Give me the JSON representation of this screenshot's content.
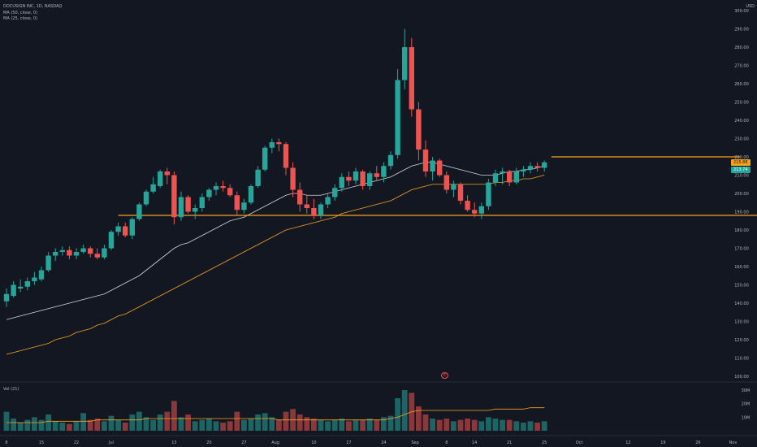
{
  "header": {
    "symbol_line": "DOCUSIGN INC, 1D, NASDAQ",
    "ma_line_1": "MA (50, close, 0)",
    "ma_line_2": "MA (25, close, 0)",
    "volume_label": "Vol (21)",
    "currency": "USD"
  },
  "price_badges": {
    "last_price": "216.88",
    "ma_value": "213.74"
  },
  "earnings_marker": "E",
  "colors": {
    "background": "#131722",
    "up": "#26a69a",
    "down": "#ef5350",
    "ma50": "#d1d4dc",
    "ma25": "#f7a21b",
    "level": "#f7a21b"
  },
  "chart_data": {
    "type": "candlestick",
    "price_axis": {
      "min": 100,
      "max": 300,
      "ticks": [
        "100.00",
        "110.00",
        "120.00",
        "130.00",
        "140.00",
        "150.00",
        "160.00",
        "170.00",
        "180.00",
        "190.00",
        "200.00",
        "210.00",
        "220.00",
        "230.00",
        "240.00",
        "250.00",
        "260.00",
        "270.00",
        "280.00",
        "290.00",
        "300.00"
      ]
    },
    "volume_axis": {
      "max": 30,
      "ticks": [
        "10M",
        "20M",
        "30M"
      ]
    },
    "time_axis": {
      "ticks": [
        {
          "label": "8",
          "i": 0
        },
        {
          "label": "15",
          "i": 5
        },
        {
          "label": "22",
          "i": 10
        },
        {
          "label": "Jul",
          "i": 15
        },
        {
          "label": "13",
          "i": 24
        },
        {
          "label": "20",
          "i": 29
        },
        {
          "label": "27",
          "i": 34
        },
        {
          "label": "Aug",
          "i": 38.5
        },
        {
          "label": "10",
          "i": 44
        },
        {
          "label": "17",
          "i": 49
        },
        {
          "label": "24",
          "i": 54
        },
        {
          "label": "Sep",
          "i": 58.5
        },
        {
          "label": "8",
          "i": 63
        },
        {
          "label": "14",
          "i": 67
        },
        {
          "label": "21",
          "i": 72
        },
        {
          "label": "25",
          "i": 77
        },
        {
          "label": "Oct",
          "i": 82
        },
        {
          "label": "12",
          "i": 89
        },
        {
          "label": "19",
          "i": 94
        },
        {
          "label": "26",
          "i": 99
        },
        {
          "label": "Nov",
          "i": 104
        }
      ]
    },
    "candles": [
      [
        141,
        148,
        138,
        145,
        14
      ],
      [
        144,
        152,
        143,
        150,
        9
      ],
      [
        148,
        153,
        146,
        149,
        6
      ],
      [
        149,
        154,
        147,
        152,
        8
      ],
      [
        152,
        157,
        150,
        154,
        10
      ],
      [
        153,
        160,
        152,
        158,
        8
      ],
      [
        158,
        168,
        157,
        166,
        12
      ],
      [
        166,
        170,
        163,
        168,
        7
      ],
      [
        168,
        171,
        166,
        169,
        6
      ],
      [
        169,
        171,
        164,
        166,
        5
      ],
      [
        166,
        170,
        164,
        168,
        7
      ],
      [
        168,
        172,
        167,
        170,
        13
      ],
      [
        170,
        171,
        165,
        167,
        8
      ],
      [
        167,
        170,
        164,
        165,
        9
      ],
      [
        165,
        172,
        164,
        170,
        7
      ],
      [
        170,
        180,
        169,
        179,
        11
      ],
      [
        179,
        184,
        177,
        182,
        8
      ],
      [
        182,
        184,
        176,
        177,
        6
      ],
      [
        177,
        187,
        175,
        186,
        12
      ],
      [
        186,
        195,
        185,
        194,
        14
      ],
      [
        194,
        202,
        193,
        201,
        10
      ],
      [
        201,
        209,
        200,
        205,
        8
      ],
      [
        204,
        213,
        203,
        212,
        12
      ],
      [
        212,
        214,
        205,
        210,
        14
      ],
      [
        210,
        212,
        183,
        187,
        22
      ],
      [
        187,
        201,
        185,
        198,
        10
      ],
      [
        198,
        199,
        189,
        190,
        12
      ],
      [
        190,
        194,
        186,
        192,
        7
      ],
      [
        192,
        200,
        190,
        198,
        8
      ],
      [
        198,
        203,
        196,
        202,
        9
      ],
      [
        202,
        206,
        199,
        204,
        7
      ],
      [
        204,
        207,
        201,
        203,
        6
      ],
      [
        203,
        205,
        198,
        199,
        7
      ],
      [
        199,
        201,
        188,
        191,
        14
      ],
      [
        191,
        197,
        189,
        195,
        8
      ],
      [
        195,
        205,
        194,
        204,
        9
      ],
      [
        204,
        215,
        203,
        213,
        12
      ],
      [
        213,
        226,
        212,
        225,
        13
      ],
      [
        225,
        230,
        222,
        228,
        10
      ],
      [
        228,
        230,
        223,
        227,
        8
      ],
      [
        227,
        228,
        210,
        214,
        14
      ],
      [
        214,
        217,
        198,
        202,
        16
      ],
      [
        202,
        206,
        190,
        194,
        12
      ],
      [
        194,
        199,
        189,
        192,
        10
      ],
      [
        192,
        197,
        186,
        188,
        9
      ],
      [
        188,
        195,
        186,
        194,
        8
      ],
      [
        194,
        200,
        192,
        198,
        7
      ],
      [
        198,
        205,
        196,
        203,
        8
      ],
      [
        203,
        211,
        201,
        209,
        9
      ],
      [
        209,
        212,
        204,
        207,
        7
      ],
      [
        207,
        214,
        205,
        212,
        8
      ],
      [
        212,
        213,
        202,
        204,
        8
      ],
      [
        204,
        212,
        202,
        211,
        9
      ],
      [
        211,
        215,
        207,
        209,
        8
      ],
      [
        209,
        217,
        206,
        215,
        10
      ],
      [
        215,
        223,
        213,
        221,
        11
      ],
      [
        221,
        268,
        219,
        262,
        24
      ],
      [
        262,
        290,
        257,
        280,
        30
      ],
      [
        280,
        285,
        242,
        246,
        28
      ],
      [
        246,
        250,
        218,
        224,
        18
      ],
      [
        224,
        229,
        209,
        212,
        12
      ],
      [
        212,
        220,
        207,
        218,
        9
      ],
      [
        218,
        219,
        209,
        210,
        8
      ],
      [
        210,
        212,
        200,
        202,
        9
      ],
      [
        202,
        207,
        198,
        205,
        7
      ],
      [
        205,
        206,
        194,
        196,
        8
      ],
      [
        196,
        199,
        190,
        191,
        9
      ],
      [
        191,
        195,
        187,
        189,
        8
      ],
      [
        189,
        195,
        186,
        193,
        7
      ],
      [
        193,
        208,
        191,
        206,
        10
      ],
      [
        206,
        213,
        204,
        211,
        9
      ],
      [
        211,
        214,
        205,
        212,
        8
      ],
      [
        212,
        213,
        204,
        206,
        8
      ],
      [
        206,
        214,
        205,
        212,
        7
      ],
      [
        212,
        215,
        209,
        213,
        6
      ],
      [
        213,
        217,
        211,
        215,
        7
      ],
      [
        215,
        217,
        212,
        214,
        6
      ],
      [
        214,
        218,
        212,
        217,
        7
      ]
    ],
    "ma50": [
      131,
      132,
      133,
      134,
      135,
      136,
      137,
      138,
      139,
      140,
      141,
      142,
      143,
      144,
      145,
      147,
      149,
      151,
      153,
      155,
      158,
      161,
      164,
      167,
      170,
      172,
      173,
      175,
      177,
      179,
      181,
      183,
      185,
      186,
      187,
      189,
      191,
      193,
      195,
      197,
      199,
      200,
      200,
      199,
      199,
      199,
      200,
      201,
      202,
      203,
      204,
      205,
      206,
      207,
      208,
      209,
      211,
      213,
      215,
      216,
      217,
      217,
      216,
      215,
      214,
      213,
      212,
      211,
      210,
      210,
      210,
      211,
      212,
      212,
      213,
      213,
      214,
      215
    ],
    "ma25": [
      112,
      113,
      114,
      115,
      116,
      117,
      118,
      120,
      121,
      122,
      124,
      125,
      126,
      128,
      129,
      131,
      133,
      134,
      136,
      138,
      140,
      142,
      144,
      146,
      148,
      150,
      152,
      154,
      156,
      158,
      160,
      162,
      164,
      166,
      168,
      170,
      172,
      174,
      176,
      178,
      180,
      181,
      182,
      183,
      184,
      185,
      186,
      187,
      189,
      190,
      191,
      192,
      193,
      194,
      195,
      196,
      198,
      200,
      202,
      203,
      204,
      205,
      205,
      205,
      205,
      205,
      205,
      205,
      205,
      205,
      206,
      206,
      207,
      207,
      208,
      208,
      209,
      210
    ],
    "volume_ma": [
      6,
      6,
      6,
      6,
      6,
      6,
      7,
      7,
      7,
      7,
      7,
      7,
      7,
      8,
      8,
      8,
      8,
      8,
      8,
      8,
      9,
      9,
      9,
      9,
      9,
      9,
      9,
      9,
      9,
      9,
      9,
      9,
      9,
      9,
      9,
      9,
      9,
      9,
      9,
      8,
      8,
      8,
      8,
      8,
      8,
      8,
      8,
      8,
      8,
      8,
      8,
      8,
      8,
      8,
      8,
      9,
      10,
      12,
      14,
      15,
      15,
      15,
      15,
      15,
      15,
      15,
      15,
      15,
      15,
      15,
      16,
      16,
      16,
      16,
      16,
      17,
      17,
      17
    ],
    "levels": [
      {
        "price": 188,
        "from": 16,
        "to": 110
      },
      {
        "price": 220,
        "from": 78,
        "to": 105
      }
    ]
  }
}
